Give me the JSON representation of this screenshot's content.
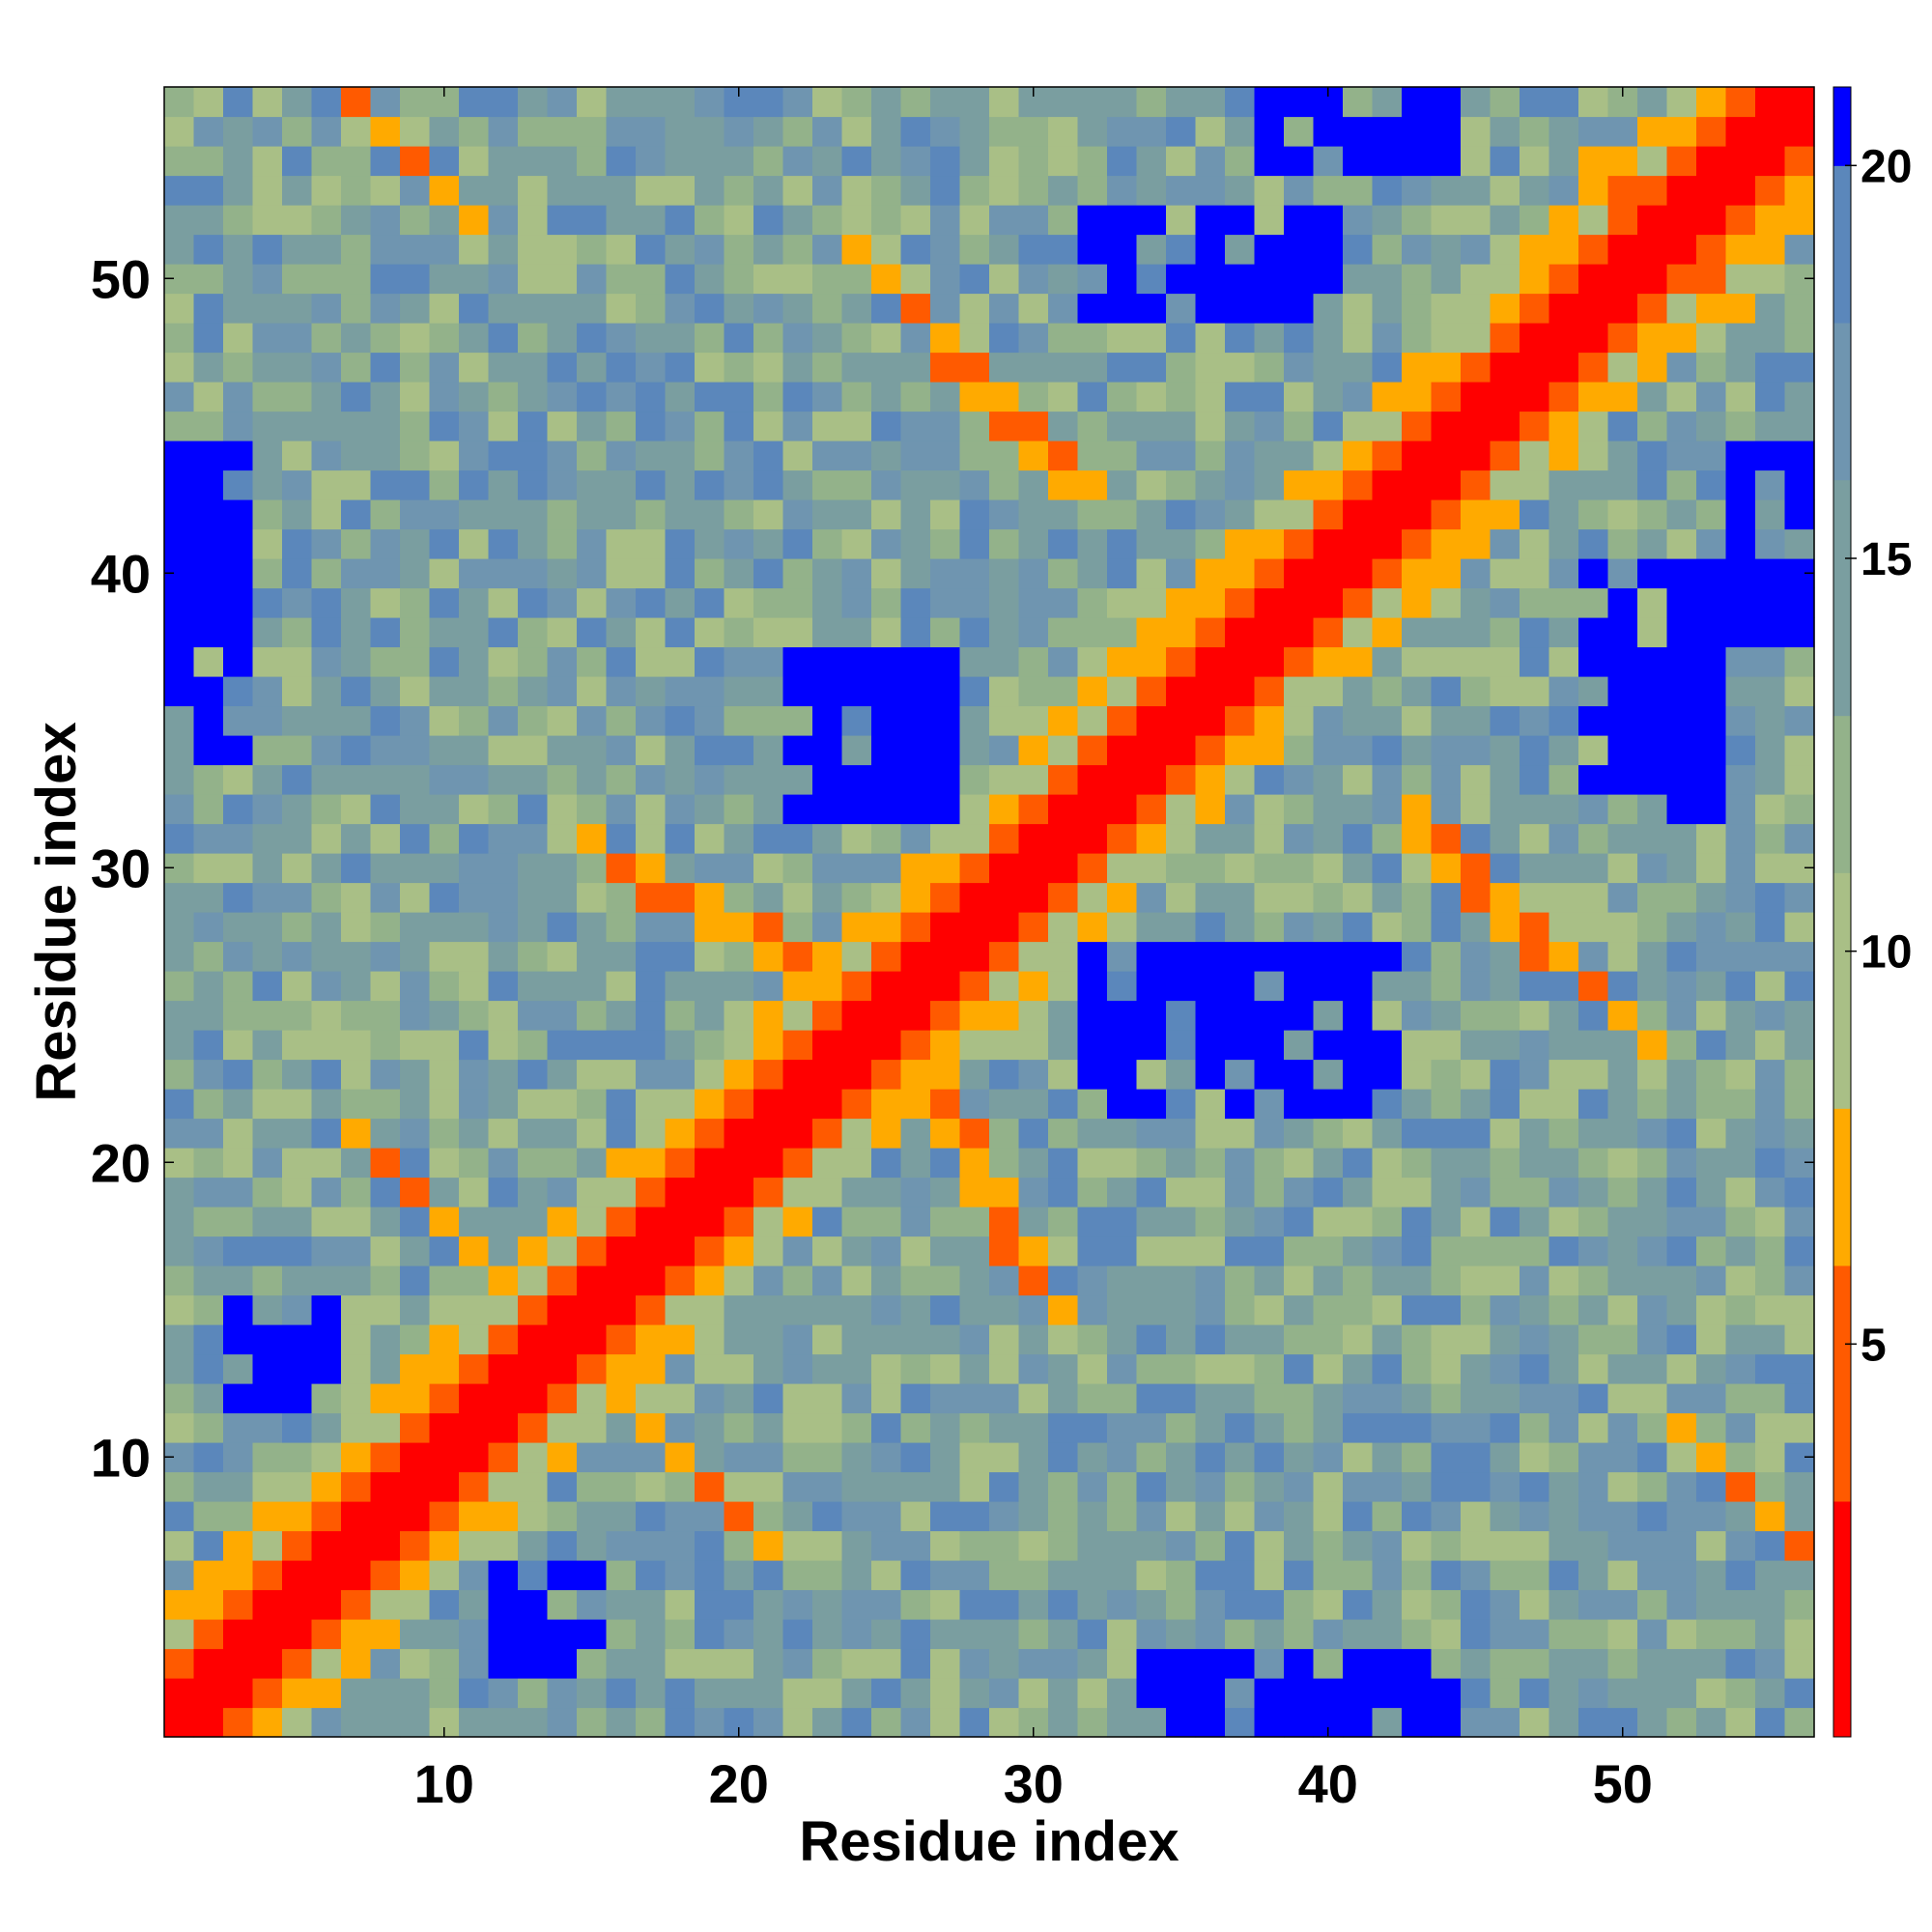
{
  "chart_data": {
    "type": "heatmap",
    "title": "",
    "xlabel": "Residue index",
    "ylabel": "Residue index",
    "n": 56,
    "x_ticks": [
      10,
      20,
      30,
      40,
      50
    ],
    "y_ticks": [
      10,
      20,
      30,
      40,
      50
    ],
    "colorbar": {
      "ticks": [
        5,
        10,
        15,
        20
      ],
      "range": [
        0,
        21
      ],
      "bins": [
        {
          "min": 0,
          "max": 3,
          "color": "#ff0000"
        },
        {
          "min": 3,
          "max": 6,
          "color": "#ff5a00"
        },
        {
          "min": 6,
          "max": 8,
          "color": "#ffaa00"
        },
        {
          "min": 8,
          "max": 11,
          "color": "#a9bf86"
        },
        {
          "min": 11,
          "max": 13,
          "color": "#93b28a"
        },
        {
          "min": 13,
          "max": 16,
          "color": "#7a9ea0"
        },
        {
          "min": 16,
          "max": 18,
          "color": "#6f95b0"
        },
        {
          "min": 18,
          "max": 20,
          "color": "#5b87bb"
        },
        {
          "min": 20,
          "max": 21,
          "color": "#0000ff"
        }
      ]
    },
    "diagonal_band_width": 2,
    "contact_features": [
      {
        "name": "helix-band",
        "i_range": [
          1,
          56
        ],
        "offset": 3,
        "value": 6.5
      },
      {
        "name": "helix-band",
        "i_range": [
          1,
          56
        ],
        "offset": 4,
        "value": 7
      },
      {
        "name": "strand-pair",
        "pairs": [
          [
            8,
            20
          ],
          [
            10,
            18
          ],
          [
            12,
            16
          ],
          [
            13,
            15
          ]
        ],
        "value": 7
      },
      {
        "name": "strand-pair",
        "pairs": [
          [
            16,
            30
          ],
          [
            18,
            29
          ],
          [
            20,
            28
          ],
          [
            22,
            27
          ]
        ],
        "value": 7
      },
      {
        "name": "strand-pair",
        "pairs": [
          [
            25,
            50
          ],
          [
            27,
            48
          ],
          [
            29,
            46
          ],
          [
            31,
            44
          ]
        ],
        "value": 7
      },
      {
        "name": "strand-pair",
        "pairs": [
          [
            44,
            30
          ],
          [
            46,
            28
          ],
          [
            48,
            27
          ],
          [
            50,
            25
          ]
        ],
        "value": 7
      },
      {
        "name": "strand-pair",
        "pairs": [
          [
            50,
            53
          ],
          [
            52,
            52
          ],
          [
            53,
            10
          ],
          [
            55,
            8
          ]
        ],
        "value": 7
      }
    ],
    "far_clusters": [
      {
        "x": [
          22,
          27
        ],
        "y": [
          32,
          37
        ],
        "value": 21
      },
      {
        "x": [
          32,
          42
        ],
        "y": [
          22,
          27
        ],
        "value": 21
      },
      {
        "x": [
          32,
          40
        ],
        "y": [
          49,
          52
        ],
        "value": 21
      },
      {
        "x": [
          49,
          53
        ],
        "y": [
          32,
          40
        ],
        "value": 21
      },
      {
        "x": [
          3,
          6
        ],
        "y": [
          12,
          15
        ],
        "value": 21
      },
      {
        "x": [
          12,
          15
        ],
        "y": [
          3,
          6
        ],
        "value": 21
      },
      {
        "x": [
          34,
          44
        ],
        "y": [
          1,
          3
        ],
        "value": 21
      },
      {
        "x": [
          1,
          3
        ],
        "y": [
          34,
          44
        ],
        "value": 21
      },
      {
        "x": [
          38,
          44
        ],
        "y": [
          54,
          56
        ],
        "value": 21
      },
      {
        "x": [
          54,
          56
        ],
        "y": [
          38,
          44
        ],
        "value": 21
      }
    ]
  }
}
